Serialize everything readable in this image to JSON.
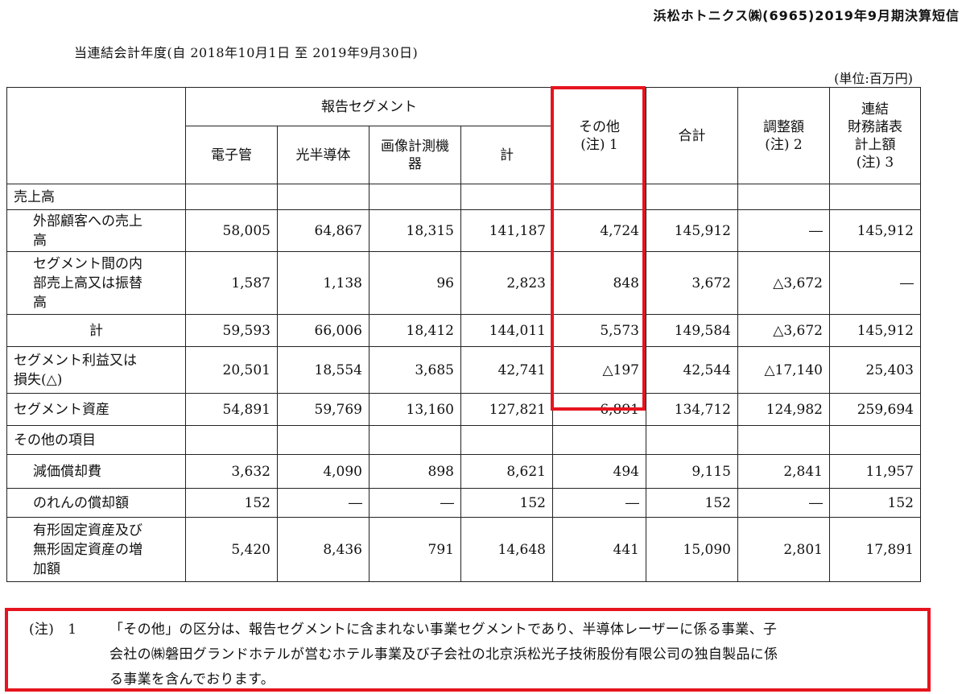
{
  "header": {
    "company": "浜松ホトニクス㈱(6965)2019年9月期決算短信",
    "period": "当連結会計年度(自 2018年10月1日 至 2019年9月30日)",
    "unit": "(単位:百万円)"
  },
  "table": {
    "col_group": "報告セグメント",
    "col_electron_tube": "電子管",
    "col_opto_semi": "光半導体",
    "col_imaging_1": "画像計測機",
    "col_imaging_2": "器",
    "col_subtotal": "計",
    "col_other_1": "その他",
    "col_other_2": "(注) 1",
    "col_total": "合計",
    "col_adjust_1": "調整額",
    "col_adjust_2": "(注) 2",
    "col_consol_1": "連結",
    "col_consol_2": "財務諸表",
    "col_consol_3": "計上額",
    "col_consol_4": "(注) 3",
    "rows": {
      "sales_header": "売上高",
      "external": {
        "label_1": "外部顧客への売上",
        "label_2": "高",
        "values": [
          "58,005",
          "64,867",
          "18,315",
          "141,187",
          "4,724",
          "145,912",
          "―",
          "145,912"
        ]
      },
      "intersegment": {
        "label_1": "セグメント間の内",
        "label_2": "部売上高又は振替",
        "label_3": "高",
        "values": [
          "1,587",
          "1,138",
          "96",
          "2,823",
          "848",
          "3,672",
          "△3,672",
          "―"
        ]
      },
      "total": {
        "label": "計",
        "values": [
          "59,593",
          "66,006",
          "18,412",
          "144,011",
          "5,573",
          "149,584",
          "△3,672",
          "145,912"
        ]
      },
      "profit": {
        "label_1": "セグメント利益又は",
        "label_2": "損失(△)",
        "values": [
          "20,501",
          "18,554",
          "3,685",
          "42,741",
          "△197",
          "42,544",
          "△17,140",
          "25,403"
        ]
      },
      "assets": {
        "label": "セグメント資産",
        "values": [
          "54,891",
          "59,769",
          "13,160",
          "127,821",
          "6,891",
          "134,712",
          "124,982",
          "259,694"
        ]
      },
      "other_header": "その他の項目",
      "depreciation": {
        "label": "減価償却費",
        "values": [
          "3,632",
          "4,090",
          "898",
          "8,621",
          "494",
          "9,115",
          "2,841",
          "11,957"
        ]
      },
      "goodwill": {
        "label": "のれんの償却額",
        "values": [
          "152",
          "―",
          "―",
          "152",
          "―",
          "152",
          "―",
          "152"
        ]
      },
      "capex": {
        "label_1": "有形固定資産及び",
        "label_2": "無形固定資産の増",
        "label_3": "加額",
        "values": [
          "5,420",
          "8,436",
          "791",
          "14,648",
          "441",
          "15,090",
          "2,801",
          "17,891"
        ]
      }
    }
  },
  "note": {
    "prefix": "(注)",
    "number": "1",
    "line1": "「その他」の区分は、報告セグメントに含まれない事業セグメントであり、半導体レーザーに係る事業、子",
    "line2": "会社の㈱磐田グランドホテルが営むホテル事業及び子会社の北京浜松光子技術股份有限公司の独自製品に係",
    "line3": "る事業を含んでおります。"
  },
  "highlight_color": "#e6141e"
}
